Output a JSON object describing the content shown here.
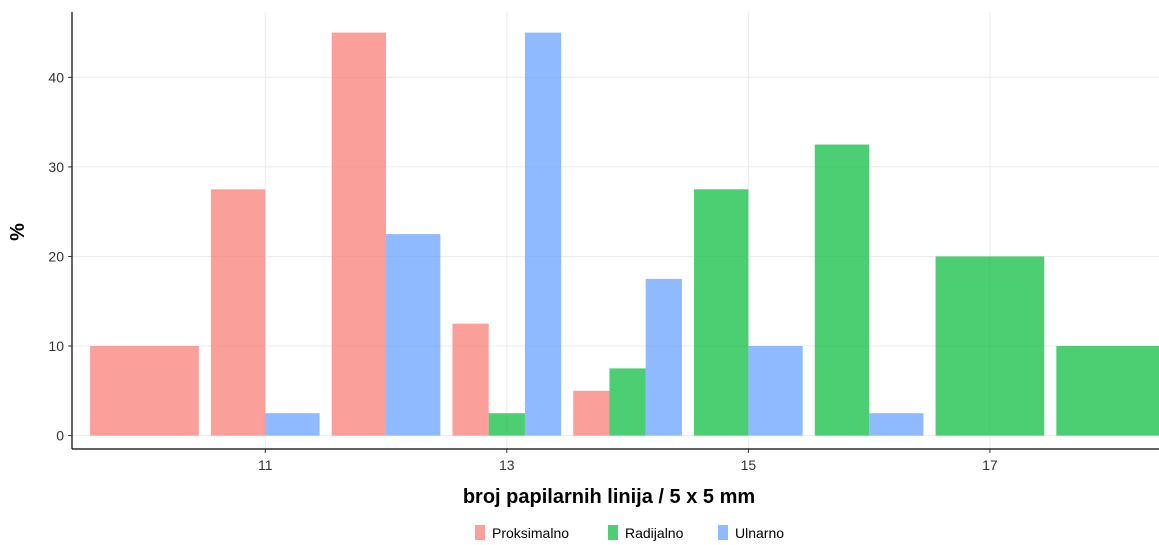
{
  "chart_data": {
    "type": "bar",
    "xlabel": "broj papilarnih linija / 5 x 5 mm",
    "ylabel": "%",
    "x_ticks": [
      11,
      13,
      15,
      17
    ],
    "y_ticks": [
      0,
      10,
      20,
      30,
      40
    ],
    "xlim": [
      9.4,
      18.4
    ],
    "ylim": [
      -1.5,
      47.3
    ],
    "grid": true,
    "legend_position": "bottom",
    "bin_width": 1,
    "series": [
      {
        "name": "Proksimalno",
        "color": "#F8766D",
        "bars": [
          {
            "x": 10,
            "value": 10
          },
          {
            "x": 11,
            "value": 27.5
          },
          {
            "x": 12,
            "value": 45
          },
          {
            "x": 13,
            "value": 12.5
          },
          {
            "x": 14,
            "value": 5
          }
        ]
      },
      {
        "name": "Radijalno",
        "color": "#00BA38",
        "bars": [
          {
            "x": 13,
            "value": 2.5
          },
          {
            "x": 14,
            "value": 7.5
          },
          {
            "x": 15,
            "value": 27.5
          },
          {
            "x": 16,
            "value": 32.5
          },
          {
            "x": 17,
            "value": 20
          },
          {
            "x": 18,
            "value": 10
          }
        ]
      },
      {
        "name": "Ulnarno",
        "color": "#619CFF",
        "bars": [
          {
            "x": 11,
            "value": 2.5
          },
          {
            "x": 12,
            "value": 22.5
          },
          {
            "x": 13,
            "value": 45
          },
          {
            "x": 14,
            "value": 17.5
          },
          {
            "x": 15,
            "value": 10
          },
          {
            "x": 16,
            "value": 2.5
          }
        ]
      }
    ]
  }
}
